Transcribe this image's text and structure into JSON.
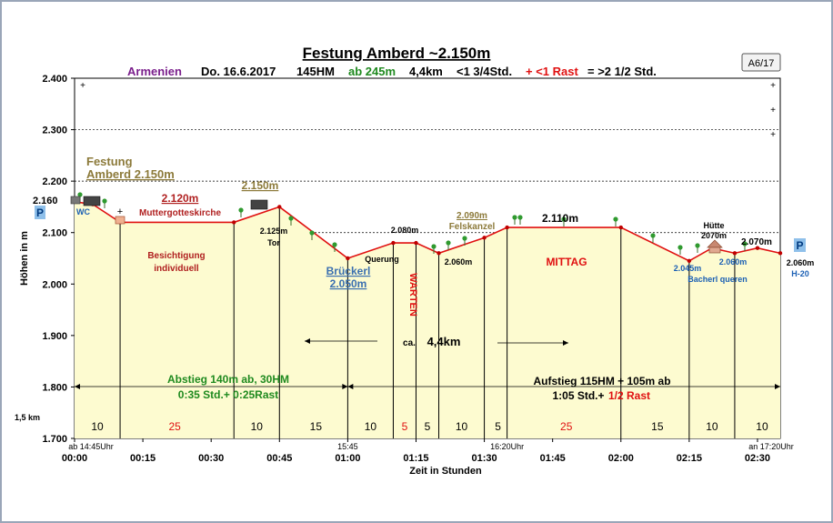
{
  "header": {
    "title": "Festung Amberd ~2.150m",
    "code": "A6/17",
    "subtitle": {
      "country": "Armenien",
      "date": "Do. 16.6.2017",
      "hm": "145HM",
      "ab": "ab 245m",
      "dist": "4,4km",
      "time": "<1 3/4Std.",
      "rast": "+ <1 Rast",
      "total": "= >2 1/2  Std."
    }
  },
  "chart_data": {
    "type": "line",
    "xlabel": "Zeit in  Stunden",
    "ylabel": "Höhen in m",
    "ylim": [
      1700,
      2400
    ],
    "xlim_min": [
      0,
      155
    ],
    "y_ticks": [
      "1.700",
      "1.800",
      "1.900",
      "2.000",
      "2.100",
      "2.200",
      "2.300",
      "2.400"
    ],
    "x_ticks": [
      "00:00",
      "00:15",
      "00:30",
      "00:45",
      "01:00",
      "01:15",
      "01:30",
      "01:45",
      "02:00",
      "02:15",
      "02:30"
    ],
    "grid": true,
    "profile": [
      {
        "t": 0,
        "h": 2160
      },
      {
        "t": 4,
        "h": 2155
      },
      {
        "t": 10,
        "h": 2120
      },
      {
        "t": 35,
        "h": 2120
      },
      {
        "t": 45,
        "h": 2150
      },
      {
        "t": 60,
        "h": 2050
      },
      {
        "t": 70,
        "h": 2080
      },
      {
        "t": 75,
        "h": 2080
      },
      {
        "t": 80,
        "h": 2060
      },
      {
        "t": 90,
        "h": 2090
      },
      {
        "t": 95,
        "h": 2110
      },
      {
        "t": 120,
        "h": 2110
      },
      {
        "t": 135,
        "h": 2045
      },
      {
        "t": 140,
        "h": 2070
      },
      {
        "t": 145,
        "h": 2060
      },
      {
        "t": 150,
        "h": 2070
      },
      {
        "t": 155,
        "h": 2060
      }
    ],
    "vlines": [
      10,
      35,
      45,
      60,
      70,
      75,
      80,
      90,
      95,
      120,
      135,
      145
    ],
    "segments": [
      {
        "label": "10",
        "color": "black",
        "t": 5
      },
      {
        "label": "25",
        "color": "red",
        "t": 22
      },
      {
        "label": "10",
        "color": "black",
        "t": 40
      },
      {
        "label": "15",
        "color": "black",
        "t": 53
      },
      {
        "label": "10",
        "color": "black",
        "t": 65
      },
      {
        "label": "5",
        "color": "red",
        "t": 72.5
      },
      {
        "label": "5",
        "color": "black",
        "t": 77.5
      },
      {
        "label": "10",
        "color": "black",
        "t": 85
      },
      {
        "label": "5",
        "color": "black",
        "t": 93
      },
      {
        "label": "25",
        "color": "red",
        "t": 108
      },
      {
        "label": "15",
        "color": "black",
        "t": 128
      },
      {
        "label": "10",
        "color": "black",
        "t": 140
      },
      {
        "label": "10",
        "color": "black",
        "t": 151
      }
    ],
    "annotations": {
      "festung1": "Festung",
      "festung2": "Amberd 2.150m",
      "h2160": "2.160",
      "wc": "WC",
      "h2120": "2.120m",
      "kirche": "Muttergotteskirche",
      "h2150": "2.150m",
      "h2125": "2.125m",
      "tor": "Tor",
      "besicht1": "Besichtigung",
      "besicht2": "individuell",
      "brueckerl": "Brückerl",
      "h2050": "2.050m",
      "h2080": "2.080m",
      "querung": "Querung",
      "warten": "WARTEN",
      "h2060a": "2.060m",
      "h2090": "2.090m",
      "felskanzel": "Felskanzel",
      "h2110": "2.110m",
      "mittag": "MITTAG",
      "huette": "Hütte",
      "h2070hut": "2070m",
      "h2070": "2.070m",
      "h2045": "2.045m",
      "h2060b": "2.060m",
      "bacherl": "Bacherl  queren",
      "h2060end": "2.060m",
      "h20": "H-20",
      "p": "P",
      "ca": "ca.",
      "dist": "4,4km",
      "abstieg1": "Abstieg  140m ab, 30HM",
      "abstieg2": "0:35 Std.+ 0:25Rast",
      "aufstieg1": "Aufstieg 115HM + 105m ab",
      "aufstieg2a": "1:05 Std.+",
      "aufstieg2b": "1/2 Rast",
      "km": "1,5 km",
      "start": "ab 14:45Uhr",
      "t1545": "15:45",
      "t1620": "16:20Uhr",
      "end": "an 17:20Uhr"
    }
  }
}
